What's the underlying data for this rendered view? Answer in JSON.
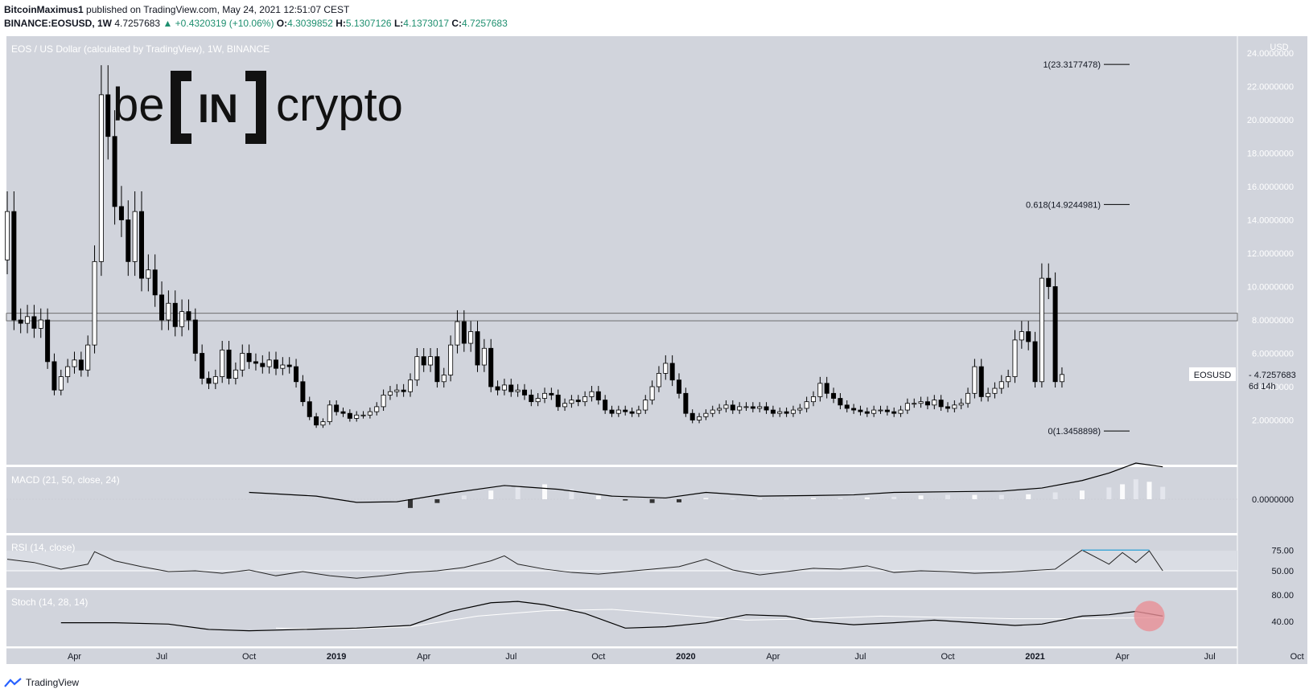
{
  "header": {
    "author": "BitcoinMaximus1",
    "published": "published on TradingView.com, May 24, 2021 12:51:07 CEST",
    "symbol": "BINANCE:EOSUSD, 1W",
    "last": "4.7257683",
    "change": "+0.4320319 (+10.06%)",
    "o_label": "O:",
    "o": "4.3039852",
    "h_label": "H:",
    "h": "5.1307126",
    "l_label": "L:",
    "l": "4.1373017",
    "c_label": "C:",
    "c": "4.7257683"
  },
  "footer": {
    "brand": "TradingView"
  },
  "logo": {
    "text_left": "be",
    "text_center": "IN",
    "text_right": "crypto"
  },
  "colors": {
    "pane_bg": "#d1d4dc",
    "rsi_band": "#dadde4",
    "candle": "#000000",
    "candle_up_fill": "#ffffff",
    "stoch_marker": "#e88f96",
    "rsi_highlight": "#2a9fd6"
  },
  "chart_data": [
    {
      "type": "candlestick",
      "title": "EOS / US Dollar (calculated by TradingView), 1W, BINANCE",
      "currency": "USD",
      "ylim": [
        0,
        25
      ],
      "y_ticks": [
        2,
        4,
        6,
        8,
        10,
        12,
        14,
        16,
        18,
        20,
        22,
        24
      ],
      "y_tick_labels": [
        "2.0000000",
        "4.0000000",
        "6.0000000",
        "8.0000000",
        "10.0000000",
        "12.0000000",
        "14.0000000",
        "16.0000000",
        "18.0000000",
        "20.0000000",
        "22.0000000",
        "24.0000000"
      ],
      "x_labels": [
        "Apr",
        "Jul",
        "Oct",
        "2019",
        "Apr",
        "Jul",
        "Oct",
        "2020",
        "Apr",
        "Jul",
        "Oct",
        "2021",
        "Apr",
        "Jul",
        "Oct"
      ],
      "x_label_weeks": [
        10,
        23,
        36,
        49,
        62,
        75,
        88,
        101,
        114,
        127,
        140,
        153,
        166,
        179,
        192
      ],
      "horizontal_zone": [
        7.95,
        8.4
      ],
      "fib_levels": [
        {
          "label": "1(23.3177478)",
          "value": 23.3177478
        },
        {
          "label": "0.618(14.9244981)",
          "value": 14.9244981
        },
        {
          "label": "0(1.3458898)",
          "value": 1.3458898
        }
      ],
      "last_price_label": "EOSUSD",
      "last_price": "4.7257683",
      "countdown": "6d 14h",
      "close_series": [
        14.5,
        8,
        7.8,
        8.2,
        7.5,
        8,
        5.5,
        3.8,
        4.6,
        5.2,
        5.6,
        5,
        6.5,
        11.5,
        21.5,
        19,
        14.8,
        14,
        11.5,
        14.5,
        10.5,
        11,
        9.5,
        8,
        9,
        7.6,
        8.5,
        8,
        6,
        4.5,
        4.2,
        4.6,
        6.2,
        4.5,
        5,
        6,
        5.5,
        5.4,
        5.2,
        5.6,
        5.1,
        5.3,
        5.2,
        4.3,
        3.1,
        2.2,
        1.7,
        1.9,
        2.9,
        2.5,
        2.4,
        2.1,
        2.3,
        2.3,
        2.5,
        2.8,
        3.5,
        3.7,
        3.8,
        3.7,
        4.4,
        5.8,
        5.3,
        5.8,
        4.3,
        4.7,
        6.5,
        7.9,
        6.6,
        7.3,
        5.3,
        6.3,
        4,
        3.8,
        4.1,
        3.7,
        3.8,
        3.5,
        3.1,
        3.3,
        3.6,
        3.5,
        2.8,
        3,
        3.2,
        3.1,
        3.4,
        3.7,
        3.2,
        2.6,
        2.4,
        2.6,
        2.5,
        2.4,
        2.6,
        3.2,
        4,
        4.8,
        5.4,
        4.4,
        3.6,
        2.4,
        2,
        2.2,
        2.4,
        2.6,
        2.7,
        2.9,
        2.6,
        2.8,
        2.8,
        2.7,
        2.8,
        2.6,
        2.4,
        2.5,
        2.4,
        2.6,
        2.7,
        3.1,
        3.4,
        4.2,
        3.6,
        3.3,
        2.9,
        2.7,
        2.6,
        2.5,
        2.4,
        2.6,
        2.6,
        2.5,
        2.4,
        2.6,
        3,
        3,
        3.1,
        2.9,
        3.2,
        2.8,
        2.7,
        2.9,
        3,
        3.6,
        5.2,
        3.4,
        3.6,
        3.9,
        4.3,
        4.6,
        6.8,
        7.3,
        6.7,
        4.3,
        10.5,
        10,
        4.3,
        4.73
      ]
    },
    {
      "type": "line",
      "title": "MACD (21, 50, close, 24)",
      "y_tick_labels": [
        "0.0000000"
      ],
      "series": [
        {
          "name": "MACD",
          "x": [
            36,
            46,
            52,
            58,
            66,
            74,
            82,
            90,
            98,
            104,
            112,
            120,
            126,
            132,
            140,
            148,
            154,
            160,
            164,
            168,
            172
          ],
          "values": [
            0.55,
            0.25,
            -0.25,
            -0.2,
            0.5,
            1.1,
            0.8,
            0.25,
            0.1,
            0.55,
            0.25,
            0.3,
            0.35,
            0.55,
            0.6,
            0.65,
            0.9,
            1.5,
            2.1,
            2.9,
            2.6
          ]
        },
        {
          "name": "Histogram",
          "x": [
            60,
            64,
            68,
            72,
            76,
            80,
            84,
            88,
            92,
            96,
            100,
            104,
            108,
            112,
            116,
            120,
            124,
            128,
            132,
            136,
            140,
            144,
            148,
            152,
            156,
            160,
            164,
            166,
            168,
            170,
            172
          ],
          "values": [
            -0.7,
            -0.3,
            0.3,
            0.7,
            1.1,
            1.2,
            0.8,
            0.3,
            -0.1,
            -0.3,
            -0.25,
            0.1,
            0.05,
            0.05,
            0.05,
            0.1,
            0.1,
            0.15,
            0.2,
            0.3,
            0.35,
            0.35,
            0.35,
            0.4,
            0.55,
            0.7,
            0.95,
            1.2,
            1.6,
            1.4,
            1.0
          ]
        }
      ]
    },
    {
      "type": "line",
      "title": "RSI (14, close)",
      "y_ticks": [
        50,
        75
      ],
      "y_tick_labels": [
        "50.00",
        "75.00"
      ],
      "x": [
        0,
        4,
        8,
        12,
        13,
        16,
        20,
        24,
        28,
        32,
        36,
        40,
        44,
        48,
        52,
        56,
        60,
        64,
        68,
        72,
        74,
        76,
        80,
        84,
        88,
        92,
        96,
        100,
        104,
        108,
        112,
        116,
        120,
        124,
        128,
        132,
        136,
        140,
        144,
        148,
        152,
        156,
        160,
        164,
        166,
        168,
        170,
        172
      ],
      "values": [
        64,
        60,
        52,
        58,
        73,
        62,
        55,
        49,
        50,
        47,
        51,
        44,
        49,
        44,
        41,
        44,
        48,
        50,
        54,
        62,
        68,
        58,
        52,
        48,
        46,
        49,
        52,
        55,
        64,
        51,
        45,
        49,
        53,
        52,
        56,
        48,
        50,
        49,
        47,
        48,
        50,
        52,
        75,
        58,
        72,
        60,
        74,
        50
      ]
    },
    {
      "type": "line",
      "title": "Stoch (14, 28, 14)",
      "y_ticks": [
        40,
        80
      ],
      "y_tick_labels": [
        "40.00",
        "80.00"
      ],
      "series": [
        {
          "name": "%K",
          "x": [
            8,
            16,
            24,
            30,
            36,
            44,
            52,
            60,
            66,
            72,
            76,
            80,
            86,
            92,
            98,
            104,
            110,
            116,
            120,
            126,
            132,
            138,
            144,
            150,
            154,
            160,
            164,
            168,
            172
          ],
          "values": [
            38,
            38,
            36,
            28,
            26,
            28,
            30,
            34,
            55,
            68,
            70,
            65,
            52,
            30,
            32,
            38,
            50,
            48,
            40,
            35,
            38,
            42,
            38,
            34,
            36,
            48,
            50,
            55,
            48
          ]
        },
        {
          "name": "%D",
          "x": [
            40,
            50,
            60,
            70,
            80,
            90,
            100,
            110,
            120,
            130,
            140,
            150,
            160,
            172
          ],
          "values": [
            30,
            28,
            32,
            48,
            56,
            58,
            50,
            42,
            44,
            48,
            46,
            44,
            44,
            46
          ]
        }
      ]
    }
  ]
}
